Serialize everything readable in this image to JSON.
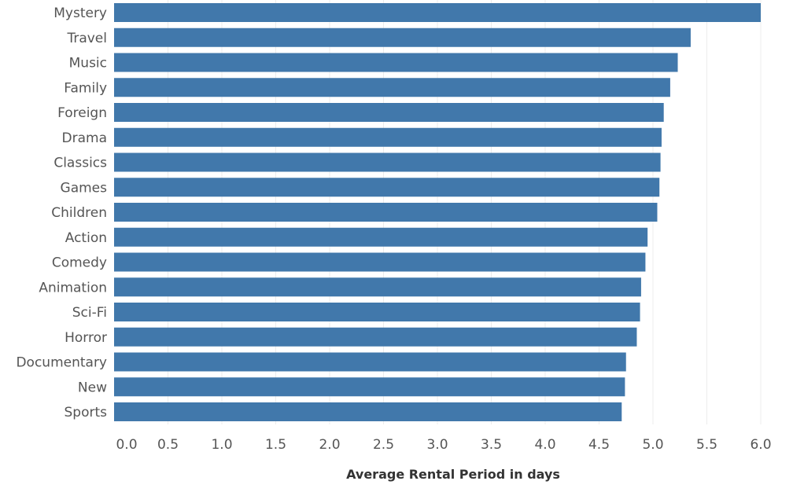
{
  "chart_data": {
    "type": "bar",
    "orientation": "horizontal",
    "categories": [
      "Mystery",
      "Travel",
      "Music",
      "Family",
      "Foreign",
      "Drama",
      "Classics",
      "Games",
      "Children",
      "Action",
      "Comedy",
      "Animation",
      "Sci-Fi",
      "Horror",
      "Documentary",
      "New",
      "Sports"
    ],
    "values": [
      6.0,
      5.35,
      5.23,
      5.16,
      5.1,
      5.08,
      5.07,
      5.06,
      5.04,
      4.95,
      4.93,
      4.89,
      4.88,
      4.85,
      4.75,
      4.74,
      4.71
    ],
    "xlabel": "Average Rental Period in days",
    "ylabel": "",
    "xlim": [
      0,
      6.25
    ],
    "xticks": [
      0.0,
      0.5,
      1.0,
      1.5,
      2.0,
      2.5,
      3.0,
      3.5,
      4.0,
      4.5,
      5.0,
      5.5,
      6.0
    ],
    "xtick_labels": [
      "0.0",
      "0.5",
      "1.0",
      "1.5",
      "2.0",
      "2.5",
      "3.0",
      "3.5",
      "4.0",
      "4.5",
      "5.0",
      "5.5",
      "6.0"
    ],
    "grid": "vertical",
    "bar_color": "#4178ab"
  }
}
